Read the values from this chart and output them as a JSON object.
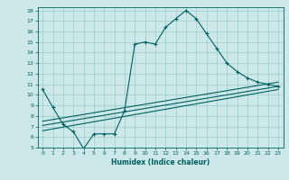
{
  "xlabel": "Humidex (Indice chaleur)",
  "bg_color": "#cce8e8",
  "line_color": "#006060",
  "grid_color": "#99cccc",
  "xlim": [
    -0.5,
    23.5
  ],
  "ylim": [
    5,
    18.3
  ],
  "xticks": [
    0,
    1,
    2,
    3,
    4,
    5,
    6,
    7,
    8,
    9,
    10,
    11,
    12,
    13,
    14,
    15,
    16,
    17,
    18,
    19,
    20,
    21,
    22,
    23
  ],
  "yticks": [
    5,
    6,
    7,
    8,
    9,
    10,
    11,
    12,
    13,
    14,
    15,
    16,
    17,
    18
  ],
  "line1_x": [
    0,
    1,
    2,
    3,
    4,
    5,
    6,
    7,
    8,
    9,
    10,
    11,
    12,
    13,
    14,
    15,
    16,
    17,
    18,
    19,
    20,
    21,
    22,
    23
  ],
  "line1_y": [
    10.5,
    8.8,
    7.2,
    6.5,
    4.9,
    6.3,
    6.3,
    6.3,
    8.5,
    14.8,
    15.0,
    14.8,
    16.4,
    17.2,
    18.0,
    17.2,
    15.8,
    14.4,
    13.0,
    12.2,
    11.6,
    11.2,
    11.0,
    10.8
  ],
  "line2_x": [
    0,
    23
  ],
  "line2_y": [
    7.5,
    11.2
  ],
  "line3_x": [
    0,
    23
  ],
  "line3_y": [
    7.1,
    10.8
  ],
  "line4_x": [
    0,
    23
  ],
  "line4_y": [
    6.6,
    10.5
  ]
}
